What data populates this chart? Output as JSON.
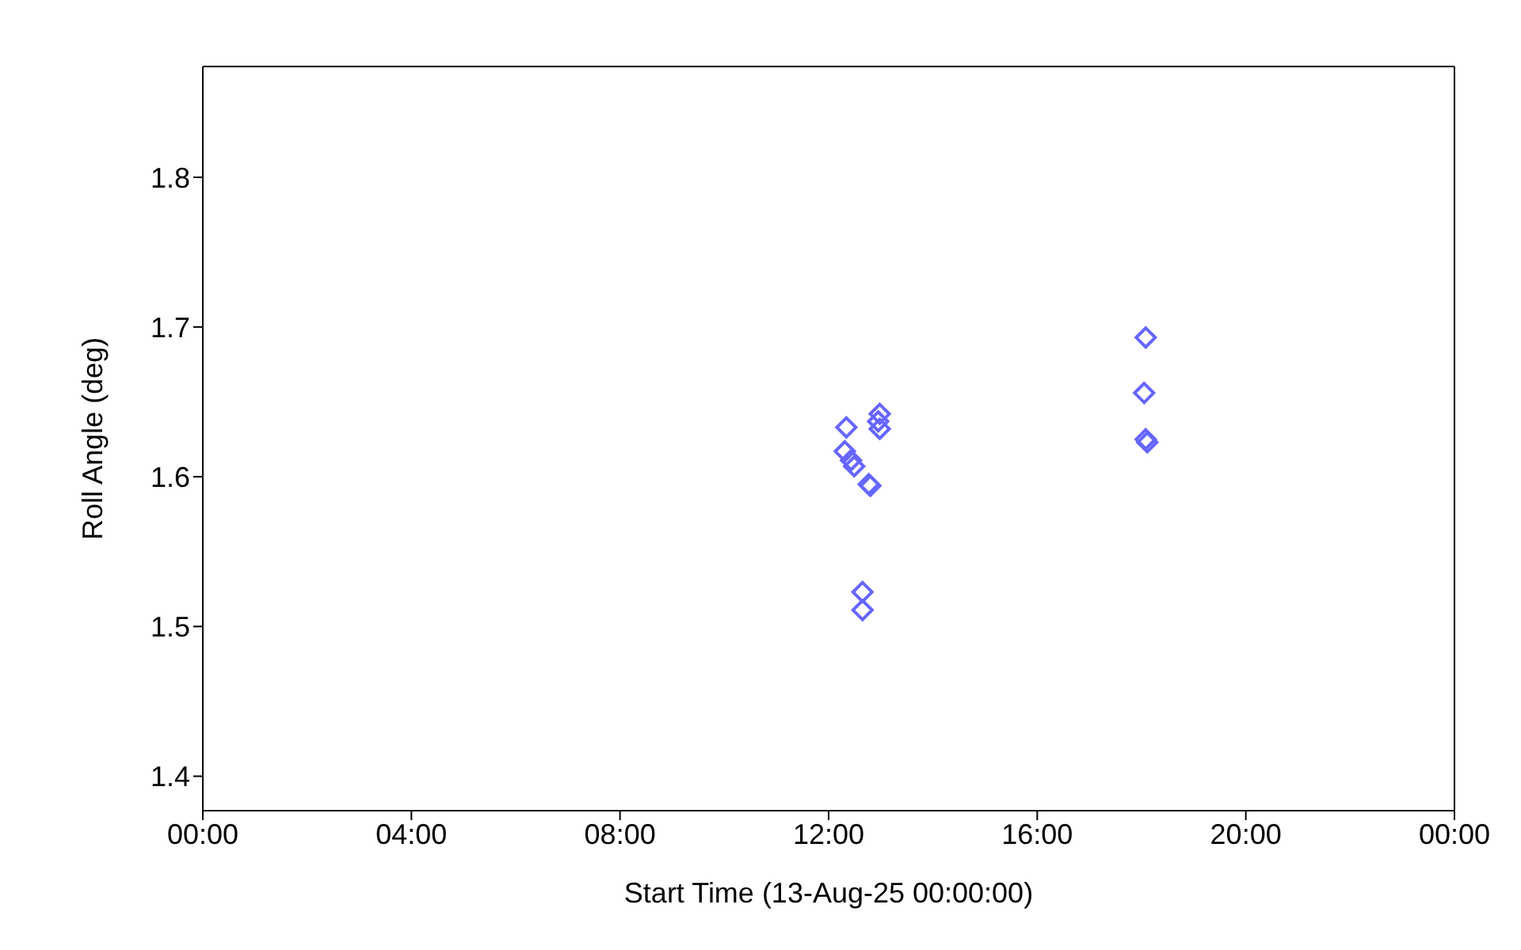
{
  "chart_data": {
    "type": "scatter",
    "xlabel": "Start Time (13-Aug-25 00:00:00)",
    "ylabel": "Roll Angle (deg)",
    "x": [
      12.34,
      12.98,
      12.95,
      12.98,
      12.31,
      12.43,
      12.49,
      12.77,
      12.8,
      12.65,
      12.65,
      18.08,
      18.05,
      18.08,
      18.11
    ],
    "series": [
      {
        "color": "#6666ff",
        "values": [
          1.633,
          1.642,
          1.637,
          1.632,
          1.617,
          1.611,
          1.607,
          1.595,
          1.594,
          1.523,
          1.511,
          1.693,
          1.656,
          1.625,
          1.623
        ]
      }
    ],
    "xlim": [
      0,
      24
    ],
    "xticks": [
      {
        "value": 0,
        "label": "00:00"
      },
      {
        "value": 4,
        "label": "04:00"
      },
      {
        "value": 8,
        "label": "08:00"
      },
      {
        "value": 12,
        "label": "12:00"
      },
      {
        "value": 16,
        "label": "16:00"
      },
      {
        "value": 20,
        "label": "20:00"
      },
      {
        "value": 24,
        "label": "00:00"
      }
    ],
    "ylim": [
      1.377,
      1.874
    ],
    "yticks": [
      1.4,
      1.5,
      1.6,
      1.7,
      1.8
    ],
    "marker": "diamond"
  }
}
